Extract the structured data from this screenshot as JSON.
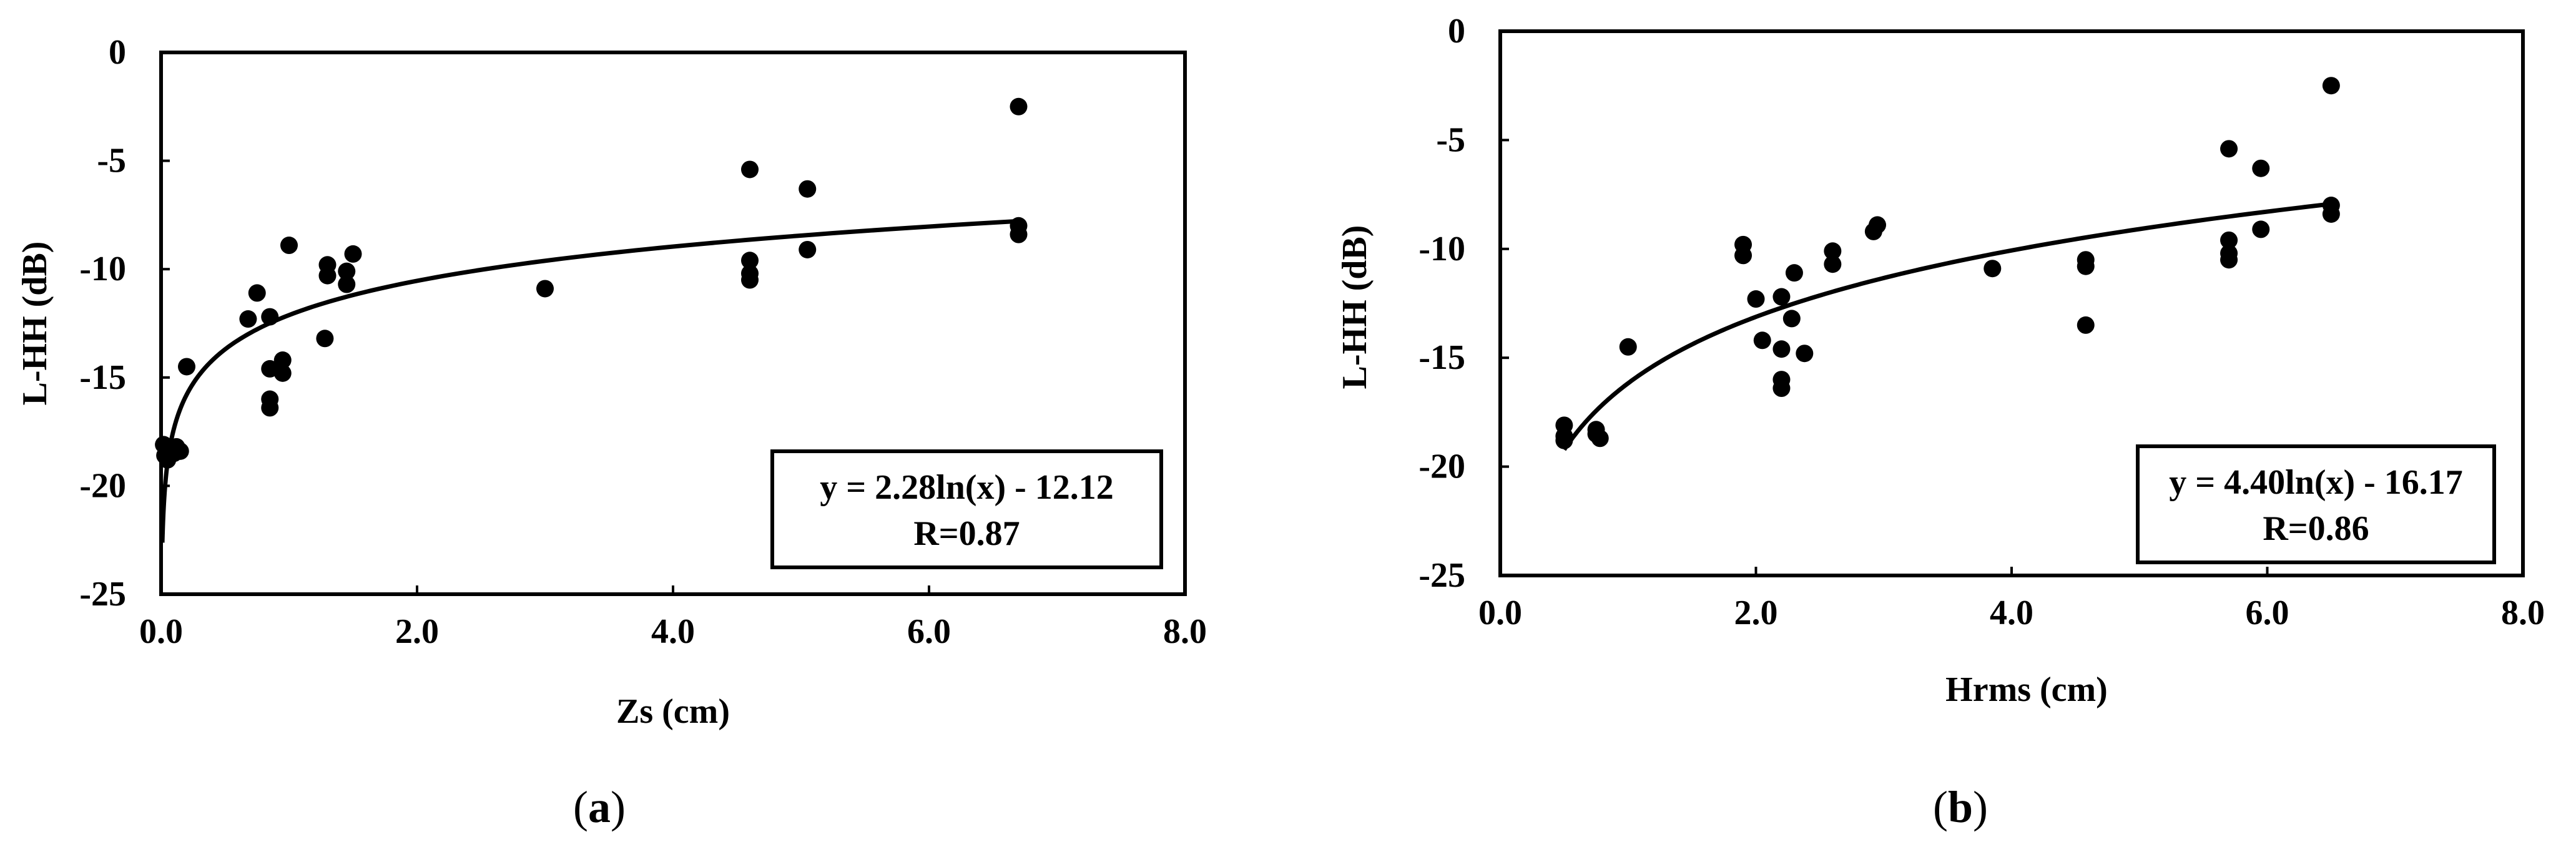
{
  "chart_data": [
    {
      "type": "scatter",
      "panel": "a",
      "caption_letter": "a",
      "title": "",
      "xlabel": "Zs (cm)",
      "ylabel": "L-HH (dB)",
      "xlim": [
        0,
        8
      ],
      "ylim": [
        -25,
        0
      ],
      "x_ticks": [
        0,
        2,
        4,
        6,
        8
      ],
      "x_tick_labels": [
        "0.0",
        "2.0",
        "4.0",
        "6.0",
        "8.0"
      ],
      "y_ticks": [
        0,
        -5,
        -10,
        -15,
        -20,
        -25
      ],
      "y_tick_labels": [
        "0",
        "-5",
        "-10",
        "-15",
        "-20",
        "-25"
      ],
      "grid": false,
      "points": [
        {
          "x": 0.02,
          "y": -18.1
        },
        {
          "x": 0.03,
          "y": -18.6
        },
        {
          "x": 0.05,
          "y": -18.8
        },
        {
          "x": 0.08,
          "y": -18.3
        },
        {
          "x": 0.1,
          "y": -18.5
        },
        {
          "x": 0.12,
          "y": -18.2
        },
        {
          "x": 0.15,
          "y": -18.4
        },
        {
          "x": 0.2,
          "y": -14.5
        },
        {
          "x": 0.68,
          "y": -12.3
        },
        {
          "x": 0.75,
          "y": -11.1
        },
        {
          "x": 0.85,
          "y": -12.2
        },
        {
          "x": 0.85,
          "y": -14.6
        },
        {
          "x": 0.85,
          "y": -16.0
        },
        {
          "x": 0.85,
          "y": -16.4
        },
        {
          "x": 0.95,
          "y": -14.8
        },
        {
          "x": 0.95,
          "y": -14.2
        },
        {
          "x": 1.0,
          "y": -8.9
        },
        {
          "x": 1.28,
          "y": -13.2
        },
        {
          "x": 1.3,
          "y": -9.8
        },
        {
          "x": 1.3,
          "y": -10.3
        },
        {
          "x": 1.45,
          "y": -10.1
        },
        {
          "x": 1.45,
          "y": -10.7
        },
        {
          "x": 1.5,
          "y": -9.3
        },
        {
          "x": 3.0,
          "y": -10.9
        },
        {
          "x": 4.6,
          "y": -5.4
        },
        {
          "x": 4.6,
          "y": -9.6
        },
        {
          "x": 4.6,
          "y": -10.2
        },
        {
          "x": 4.6,
          "y": -10.5
        },
        {
          "x": 5.05,
          "y": -6.3
        },
        {
          "x": 5.05,
          "y": -9.1
        },
        {
          "x": 6.7,
          "y": -2.5
        },
        {
          "x": 6.7,
          "y": -8.0
        },
        {
          "x": 6.7,
          "y": -8.4
        }
      ],
      "fit": {
        "type": "log",
        "a": 2.28,
        "b": -12.12,
        "x_range": [
          0.01,
          6.7
        ]
      },
      "annotation": {
        "equation": "y = 2.28ln(x) - 12.12",
        "r_text": "R=0.87",
        "position": "bottom-right"
      }
    },
    {
      "type": "scatter",
      "panel": "b",
      "caption_letter": "b",
      "title": "",
      "xlabel": "Hrms (cm)",
      "ylabel": "L-HH (dB)",
      "xlim": [
        0,
        8
      ],
      "ylim": [
        -25,
        0
      ],
      "x_ticks": [
        0,
        2,
        4,
        6,
        8
      ],
      "x_tick_labels": [
        "0.0",
        "2.0",
        "4.0",
        "6.0",
        "8.0"
      ],
      "y_ticks": [
        0,
        -5,
        -10,
        -15,
        -20,
        -25
      ],
      "y_tick_labels": [
        "0",
        "-5",
        "-10",
        "-15",
        "-20",
        "-25"
      ],
      "grid": false,
      "points": [
        {
          "x": 0.5,
          "y": -18.1
        },
        {
          "x": 0.5,
          "y": -18.6
        },
        {
          "x": 0.5,
          "y": -18.8
        },
        {
          "x": 0.75,
          "y": -18.3
        },
        {
          "x": 0.75,
          "y": -18.5
        },
        {
          "x": 0.78,
          "y": -18.7
        },
        {
          "x": 1.0,
          "y": -14.5
        },
        {
          "x": 1.9,
          "y": -9.8
        },
        {
          "x": 1.9,
          "y": -10.3
        },
        {
          "x": 2.0,
          "y": -12.3
        },
        {
          "x": 2.05,
          "y": -14.2
        },
        {
          "x": 2.2,
          "y": -12.2
        },
        {
          "x": 2.2,
          "y": -14.6
        },
        {
          "x": 2.2,
          "y": -16.0
        },
        {
          "x": 2.2,
          "y": -16.4
        },
        {
          "x": 2.28,
          "y": -13.2
        },
        {
          "x": 2.3,
          "y": -11.1
        },
        {
          "x": 2.38,
          "y": -14.8
        },
        {
          "x": 2.6,
          "y": -10.1
        },
        {
          "x": 2.6,
          "y": -10.7
        },
        {
          "x": 2.92,
          "y": -9.2
        },
        {
          "x": 2.95,
          "y": -8.9
        },
        {
          "x": 3.85,
          "y": -10.9
        },
        {
          "x": 4.58,
          "y": -10.5
        },
        {
          "x": 4.58,
          "y": -10.8
        },
        {
          "x": 4.58,
          "y": -13.5
        },
        {
          "x": 5.7,
          "y": -5.4
        },
        {
          "x": 5.7,
          "y": -9.6
        },
        {
          "x": 5.7,
          "y": -10.2
        },
        {
          "x": 5.7,
          "y": -10.5
        },
        {
          "x": 5.95,
          "y": -6.3
        },
        {
          "x": 5.95,
          "y": -9.1
        },
        {
          "x": 6.5,
          "y": -2.5
        },
        {
          "x": 6.5,
          "y": -8.0
        },
        {
          "x": 6.5,
          "y": -8.4
        }
      ],
      "fit": {
        "type": "log",
        "a": 4.4,
        "b": -16.17,
        "x_range": [
          0.5,
          6.5
        ]
      },
      "annotation": {
        "equation": "y = 4.40ln(x) - 16.17",
        "r_text": "R=0.86",
        "position": "bottom-right"
      }
    }
  ],
  "colors": {
    "marker": "#000000",
    "line": "#000000",
    "background": "#ffffff"
  }
}
